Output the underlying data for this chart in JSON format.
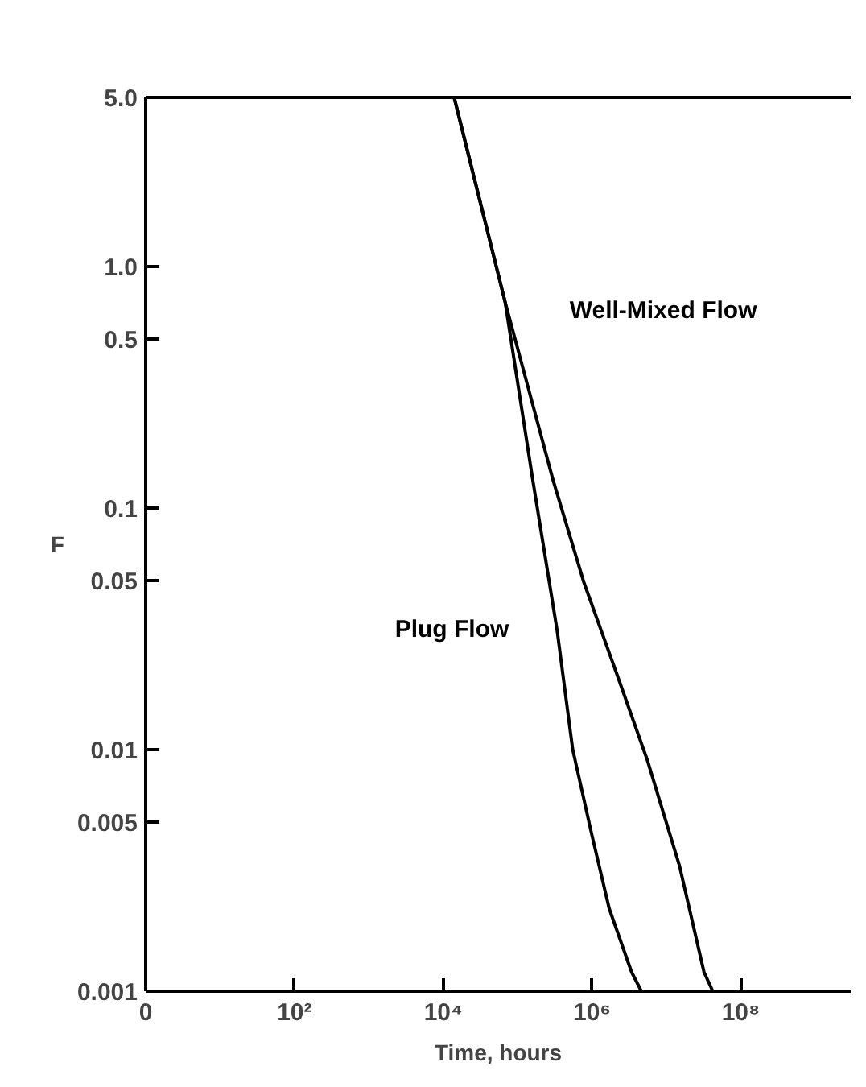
{
  "chart_data": {
    "type": "line",
    "xlabel": "Time, hours",
    "ylabel": "F",
    "log": "xy",
    "grid": false,
    "marker": "none",
    "line_style": "solid",
    "xlim": [
      0,
      3000000000
    ],
    "ylim": [
      0.001,
      5.0
    ],
    "xticks": [
      0,
      {
        "value": 100,
        "label": "10²"
      },
      {
        "value": 10000,
        "label": "10⁴"
      },
      {
        "value": 1000000,
        "label": "10⁶"
      },
      {
        "value": 100000000,
        "label": "10⁸"
      }
    ],
    "yticks": [
      {
        "value": 0.001,
        "label": "0.001"
      },
      0.005,
      0.01,
      0.05,
      0.1,
      0.5,
      {
        "value": 1.0,
        "label": "1.0"
      },
      {
        "value": 5.0,
        "label": "5.0"
      }
    ],
    "series": [
      {
        "name": "Well-Mixed Flow",
        "color": "#000000",
        "x": [
          14000,
          68000,
          300000,
          780000,
          2100000,
          5500000,
          15000000,
          32000000,
          42000000
        ],
        "values": [
          5.0,
          0.71,
          0.13,
          0.049,
          0.021,
          0.0091,
          0.0033,
          0.0012,
          0.001
        ]
      },
      {
        "name": "Plug Flow",
        "color": "#000000",
        "x": [
          14000,
          68000,
          160000,
          340000,
          550000,
          1000000,
          1700000,
          3400000,
          4600000
        ],
        "values": [
          5.0,
          0.71,
          0.13,
          0.031,
          0.01,
          0.0044,
          0.0022,
          0.0012,
          0.001
        ]
      }
    ]
  }
}
